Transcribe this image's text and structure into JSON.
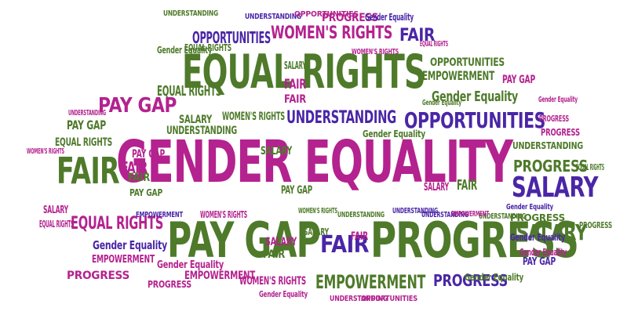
{
  "colors": {
    "green": "#4e7a2a",
    "magenta": "#b4228f",
    "purple": "#4a26a6",
    "background": "#ffffff"
  },
  "words": [
    {
      "text": "GENDER EQUALITY",
      "color": "magenta"
    },
    {
      "text": "EQUAL RIGHTS",
      "color": "green"
    },
    {
      "text": "PAY GAP",
      "color": "green"
    },
    {
      "text": "PROGRESS",
      "color": "green"
    },
    {
      "text": "FAIR",
      "color": "green"
    },
    {
      "text": "SALARY",
      "color": "purple"
    },
    {
      "text": "OPPORTUNITIES",
      "color": "purple"
    },
    {
      "text": "UNDERSTANDING",
      "color": "purple"
    },
    {
      "text": "WOMEN'S RIGHTS",
      "color": "magenta"
    },
    {
      "text": "FAIR",
      "color": "purple"
    },
    {
      "text": "FAIR",
      "color": "magenta"
    },
    {
      "text": "PAY GAP",
      "color": "magenta"
    },
    {
      "text": "EQUAL RIGHTS",
      "color": "magenta"
    },
    {
      "text": "EMPOWERMENT",
      "color": "green"
    },
    {
      "text": "OPPORTUNITIES",
      "color": "purple"
    },
    {
      "text": "FAIR",
      "color": "purple"
    },
    {
      "text": "SALARY",
      "color": "green"
    },
    {
      "text": "Gender Equality",
      "color": "purple"
    },
    {
      "text": "Gender Equality",
      "color": "green"
    },
    {
      "text": "EMPOWERMENT",
      "color": "magenta"
    },
    {
      "text": "WOMEN'S RIGHTS",
      "color": "green"
    },
    {
      "text": "PROGRESS",
      "color": "purple"
    },
    {
      "text": "UNDERSTANDING",
      "color": "green"
    },
    {
      "text": "PROGRESS",
      "color": "green"
    },
    {
      "text": "WOMEN'S RIGHTS",
      "color": "magenta"
    },
    {
      "text": "PAY GAP",
      "color": "green"
    },
    {
      "text": "FAIR",
      "color": "magenta"
    },
    {
      "text": "SALARY",
      "color": "green"
    },
    {
      "text": "PAY GAP",
      "color": "purple"
    },
    {
      "text": "UNDERSTANDING",
      "color": "green"
    },
    {
      "text": "EMPOWERMENT",
      "color": "green"
    },
    {
      "text": "OPPORTUNITIES",
      "color": "green"
    },
    {
      "text": "Gender Equality",
      "color": "green"
    },
    {
      "text": "PROGRESS",
      "color": "magenta"
    },
    {
      "text": "EQUAL RIGHTS",
      "color": "green"
    },
    {
      "text": "SALARY",
      "color": "magenta"
    },
    {
      "text": "SALARY",
      "color": "green"
    },
    {
      "text": "PAY GAP",
      "color": "magenta"
    },
    {
      "text": "FAIR",
      "color": "magenta"
    },
    {
      "text": "SALARY",
      "color": "green"
    },
    {
      "text": "PAY GAP",
      "color": "magenta"
    },
    {
      "text": "FAIR",
      "color": "green"
    },
    {
      "text": "SALARY",
      "color": "magenta"
    },
    {
      "text": "FAIR",
      "color": "green"
    },
    {
      "text": "SALARY",
      "color": "green"
    },
    {
      "text": "FAIR",
      "color": "magenta"
    },
    {
      "text": "PAY GAP",
      "color": "green"
    },
    {
      "text": "EQUAL RIGHTS",
      "color": "magenta"
    },
    {
      "text": "PROGRESS",
      "color": "magenta"
    },
    {
      "text": "EQUAL RIGHTS",
      "color": "green"
    },
    {
      "text": "EMPOWERMENT",
      "color": "magenta"
    },
    {
      "text": "FAIR",
      "color": "green"
    },
    {
      "text": "SALARY",
      "color": "magenta"
    },
    {
      "text": "PAY GAP",
      "color": "green"
    },
    {
      "text": "Gender Equality",
      "color": "magenta"
    },
    {
      "text": "Gender Equality",
      "color": "green"
    },
    {
      "text": "PROGRESS",
      "color": "magenta"
    },
    {
      "text": "UNDERSTANDING",
      "color": "purple"
    },
    {
      "text": "UNDERSTANDING",
      "color": "green"
    },
    {
      "text": "Gender Equality",
      "color": "green"
    },
    {
      "text": "Gender Equality",
      "color": "purple"
    },
    {
      "text": "OPPORTUNITIES",
      "color": "magenta"
    },
    {
      "text": "PROGRESS",
      "color": "magenta"
    },
    {
      "text": "UNDERSTANDING",
      "color": "green"
    },
    {
      "text": "EQUAL RIGHTS",
      "color": "green"
    },
    {
      "text": "PROGRESS",
      "color": "green"
    },
    {
      "text": "EQUAL RIGHTS",
      "color": "magenta"
    },
    {
      "text": "WOMEN'S RIGHTS",
      "color": "magenta"
    },
    {
      "text": "EQUAL RIGHTS",
      "color": "green"
    },
    {
      "text": "WOMEN'S RIGHTS",
      "color": "magenta"
    },
    {
      "text": "WOMEN'S RIGHTS",
      "color": "green"
    },
    {
      "text": "Gender Equality",
      "color": "magenta"
    },
    {
      "text": "Gender Equality",
      "color": "purple"
    },
    {
      "text": "UNDERSTANDING",
      "color": "purple"
    },
    {
      "text": "EMPOWERMENT",
      "color": "purple"
    },
    {
      "text": "Gender Equality",
      "color": "magenta"
    },
    {
      "text": "EMPOWERMENT",
      "color": "magenta"
    },
    {
      "text": "Gender Equality",
      "color": "green"
    },
    {
      "text": "WOMEN'S RIGHTS",
      "color": "magenta"
    },
    {
      "text": "UNDERSTANDING",
      "color": "green"
    },
    {
      "text": "UNDERSTANDING",
      "color": "magenta"
    },
    {
      "text": "PROGRESS",
      "color": "green"
    },
    {
      "text": "PROGRESS",
      "color": "magenta"
    },
    {
      "text": "UNDERSTANDING",
      "color": "magenta"
    },
    {
      "text": "Gender Equality",
      "color": "purple"
    },
    {
      "text": "UNDERSTANDING",
      "color": "purple"
    },
    {
      "text": "Gender Equality",
      "color": "magenta"
    },
    {
      "text": "OPPORTUNITIES",
      "color": "magenta"
    }
  ]
}
